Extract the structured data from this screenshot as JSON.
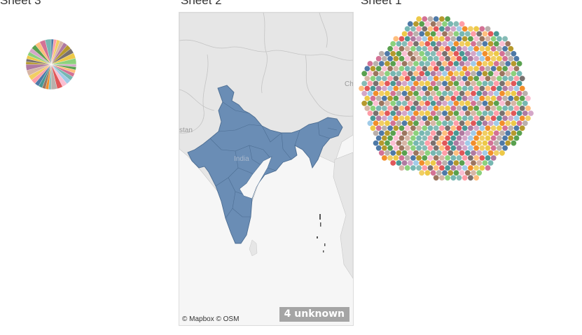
{
  "sheets": [
    {
      "title": "Sheet 3"
    },
    {
      "title": "Sheet 2"
    },
    {
      "title": "Sheet 1"
    }
  ],
  "map": {
    "attribution": "© Mapbox © OSM",
    "unknown_badge": "4 unknown",
    "labels": {
      "country": "India",
      "left": "stan",
      "right": "Ch"
    },
    "region_color": "#6a8db5"
  },
  "palette": [
    "#4e79a7",
    "#f28e2b",
    "#e15759",
    "#76b7b2",
    "#59a14f",
    "#edc948",
    "#b07aa1",
    "#ff9da7",
    "#9c755f",
    "#bab0ac",
    "#a0cbe8",
    "#ffbe7d",
    "#8cd17d",
    "#b6992d",
    "#f1ce63",
    "#499894",
    "#86bcb6",
    "#fabfd2",
    "#d37295",
    "#d4a6c8",
    "#79706e",
    "#d7b5a6"
  ]
}
